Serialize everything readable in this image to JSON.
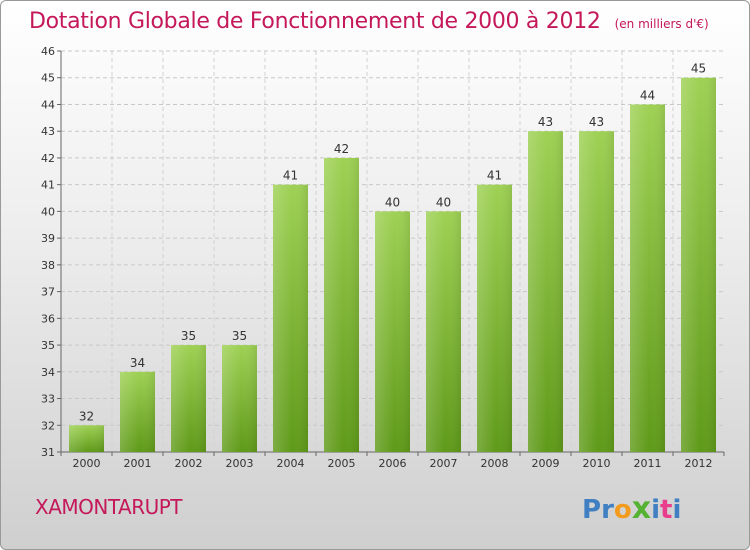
{
  "page": {
    "title": "Dotation Globale de Fonctionnement de 2000 à 2012",
    "unit": "(en milliers d'€)",
    "commune": "XAMONTARUPT",
    "logo_text": "Proxiti"
  },
  "colors": {
    "title": "#c4185a",
    "bar_light": "#9ed154",
    "bar_dark": "#5f9a19",
    "logo_letters": [
      "#3f7fc2",
      "#3f7fc2",
      "#f29b1d",
      "#55b233",
      "#3f7fc2",
      "#e83e8c",
      "#3f7fc2"
    ]
  },
  "chart_data": {
    "type": "bar",
    "title": "Dotation Globale de Fonctionnement de 2000 à 2012",
    "subtitle": "(en milliers d'€)",
    "categories": [
      "2000",
      "2001",
      "2002",
      "2003",
      "2004",
      "2005",
      "2006",
      "2007",
      "2008",
      "2009",
      "2010",
      "2011",
      "2012"
    ],
    "values": [
      32,
      34,
      35,
      35,
      41,
      42,
      40,
      40,
      41,
      43,
      43,
      44,
      45
    ],
    "ylim": [
      31,
      46
    ],
    "yticks": [
      31,
      32,
      33,
      34,
      35,
      36,
      37,
      38,
      39,
      40,
      41,
      42,
      43,
      44,
      45,
      46
    ],
    "grid": true,
    "data_labels": true
  }
}
